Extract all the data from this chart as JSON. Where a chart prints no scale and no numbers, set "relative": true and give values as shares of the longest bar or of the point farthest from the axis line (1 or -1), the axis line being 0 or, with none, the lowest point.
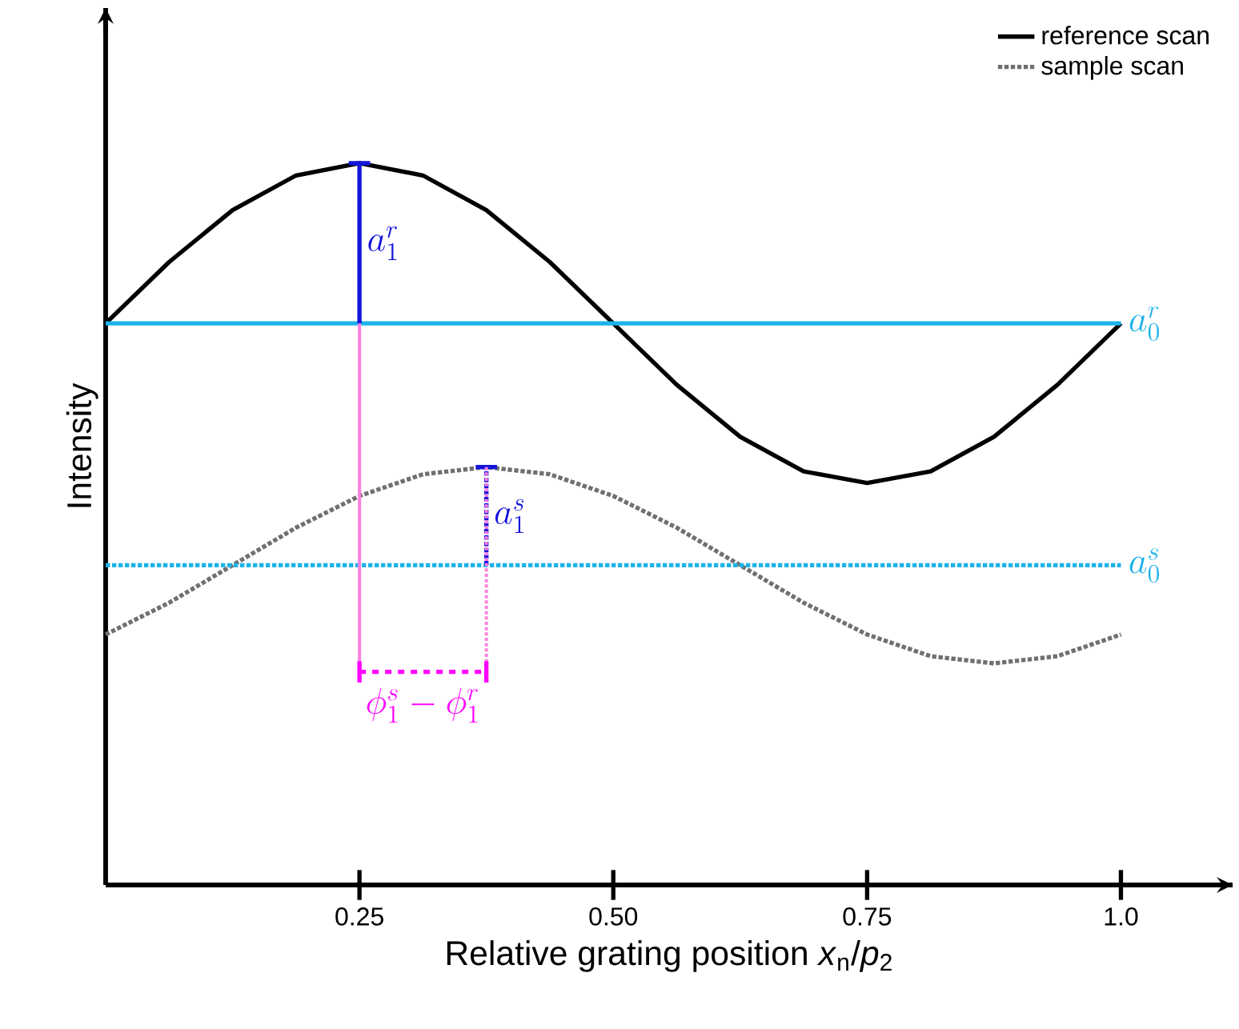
{
  "chart_data": {
    "type": "line",
    "relative": true,
    "xlabel": "Relative grating position *x*$_{n}$/*p*$_{2}$",
    "ylabel": "Intensity",
    "xlim": [
      0,
      1.11
    ],
    "xticks": [
      {
        "value": 0.25,
        "label": "0.25"
      },
      {
        "value": 0.5,
        "label": "0.50"
      },
      {
        "value": 0.75,
        "label": "0.75"
      },
      {
        "value": 1.0,
        "label": "1.0"
      }
    ],
    "x": [
      0,
      0.0625,
      0.125,
      0.1875,
      0.25,
      0.3125,
      0.375,
      0.4375,
      0.5,
      0.5625,
      0.625,
      0.6875,
      0.75,
      0.8125,
      0.875,
      0.9375,
      1.0
    ],
    "series": [
      {
        "name": "reference scan",
        "color": "#000000",
        "line_style": "solid",
        "values": [
          0.778,
          0.863,
          0.935,
          0.983,
          1.0,
          0.983,
          0.935,
          0.863,
          0.778,
          0.693,
          0.621,
          0.573,
          0.557,
          0.573,
          0.621,
          0.693,
          0.778
        ]
      },
      {
        "name": "sample scan",
        "color": "#707070",
        "line_style": "dotted",
        "values": [
          0.347,
          0.391,
          0.443,
          0.495,
          0.539,
          0.569,
          0.579,
          0.569,
          0.539,
          0.495,
          0.443,
          0.391,
          0.347,
          0.317,
          0.307,
          0.317,
          0.347
        ]
      }
    ],
    "ref_lines": [
      {
        "axis": "y",
        "value": 0.778,
        "label": "a_0^r",
        "color": "#1ab2ea",
        "line_style": "solid"
      },
      {
        "axis": "y",
        "value": 0.443,
        "label": "a_0^s",
        "color": "#1ab2ea",
        "line_style": "dotted"
      }
    ],
    "annotations": [
      {
        "text": "a_1^r",
        "x": 0.25,
        "y": 1.0
      },
      {
        "text": "a_1^s",
        "x": 0.375,
        "y": 0.579
      },
      "\\phi_1^s - \\phi_1^r"
    ],
    "legend": "top right",
    "grid": false
  }
}
